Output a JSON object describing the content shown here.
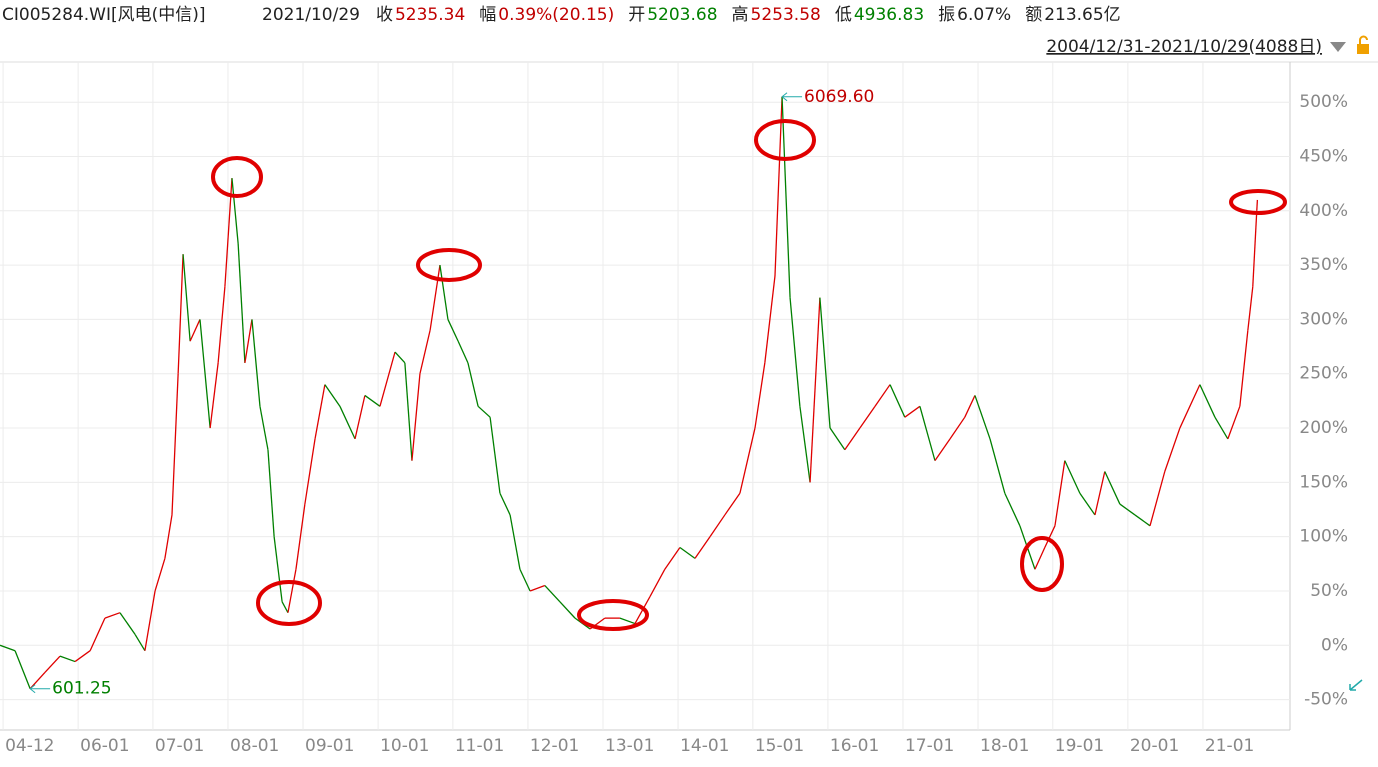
{
  "header": {
    "ticker": "CI005284.WI[风电(中信)]",
    "date": "2021/10/29",
    "fields": [
      {
        "label": "收",
        "value": "5235.34",
        "color": "#c00000"
      },
      {
        "label": "幅",
        "value": "0.39%(20.15)",
        "color": "#c00000"
      },
      {
        "label": "开",
        "value": "5203.68",
        "color": "#008000"
      },
      {
        "label": "高",
        "value": "5253.58",
        "color": "#c00000"
      },
      {
        "label": "低",
        "value": "4936.83",
        "color": "#008000"
      },
      {
        "label": "振",
        "value": "6.07%",
        "color": "#222222"
      },
      {
        "label": "额",
        "value": "213.65亿",
        "color": "#222222"
      }
    ],
    "range": "2004/12/31-2021/10/29(4088日)"
  },
  "chart_data": {
    "type": "line",
    "up_color": "#e00000",
    "down_color": "#008000",
    "grid": true,
    "xlim": [
      0,
      4193
    ],
    "ylim": [
      -78,
      537
    ],
    "xticks": [
      {
        "value": 10,
        "label": "04-12"
      },
      {
        "value": 254,
        "label": "06-01"
      },
      {
        "value": 497,
        "label": "07-01"
      },
      {
        "value": 741,
        "label": "08-01"
      },
      {
        "value": 985,
        "label": "09-01"
      },
      {
        "value": 1229,
        "label": "10-01"
      },
      {
        "value": 1472,
        "label": "11-01"
      },
      {
        "value": 1716,
        "label": "12-01"
      },
      {
        "value": 1960,
        "label": "13-01"
      },
      {
        "value": 2204,
        "label": "14-01"
      },
      {
        "value": 2447,
        "label": "15-01"
      },
      {
        "value": 2691,
        "label": "16-01"
      },
      {
        "value": 2935,
        "label": "17-01"
      },
      {
        "value": 3179,
        "label": "18-01"
      },
      {
        "value": 3422,
        "label": "19-01"
      },
      {
        "value": 3666,
        "label": "20-01"
      },
      {
        "value": 3910,
        "label": "21-01"
      }
    ],
    "yticks": [
      {
        "value": -50,
        "label": "-50%"
      },
      {
        "value": 0,
        "label": "0%"
      },
      {
        "value": 50,
        "label": "50%"
      },
      {
        "value": 100,
        "label": "100%"
      },
      {
        "value": 150,
        "label": "150%"
      },
      {
        "value": 200,
        "label": "200%"
      },
      {
        "value": 250,
        "label": "250%"
      },
      {
        "value": 300,
        "label": "300%"
      },
      {
        "value": 350,
        "label": "350%"
      },
      {
        "value": 400,
        "label": "400%"
      },
      {
        "value": 450,
        "label": "450%"
      },
      {
        "value": 500,
        "label": "500%"
      }
    ],
    "x": [
      0,
      49,
      98,
      146,
      195,
      244,
      293,
      341,
      390,
      439,
      471,
      504,
      536,
      559,
      579,
      595,
      618,
      650,
      683,
      709,
      731,
      754,
      774,
      796,
      819,
      845,
      871,
      891,
      917,
      936,
      962,
      991,
      1024,
      1056,
      1105,
      1154,
      1186,
      1235,
      1284,
      1316,
      1339,
      1365,
      1398,
      1430,
      1456,
      1489,
      1521,
      1554,
      1593,
      1625,
      1658,
      1690,
      1723,
      1771,
      1820,
      1869,
      1918,
      1966,
      2015,
      2064,
      2113,
      2161,
      2210,
      2259,
      2308,
      2356,
      2405,
      2454,
      2486,
      2519,
      2542,
      2568,
      2600,
      2633,
      2665,
      2698,
      2746,
      2795,
      2844,
      2893,
      2941,
      2990,
      3039,
      3088,
      3136,
      3169,
      3218,
      3266,
      3315,
      3364,
      3396,
      3429,
      3461,
      3510,
      3559,
      3591,
      3640,
      3689,
      3738,
      3786,
      3835,
      3900,
      3949,
      3991,
      4030,
      4056,
      4072,
      4085,
      4087
    ],
    "values": [
      0,
      -5,
      -40,
      -25,
      -10,
      -15,
      -5,
      25,
      30,
      10,
      -5,
      50,
      80,
      120,
      250,
      360,
      280,
      300,
      200,
      260,
      330,
      430,
      370,
      260,
      300,
      220,
      180,
      100,
      40,
      30,
      70,
      130,
      190,
      240,
      220,
      190,
      230,
      220,
      270,
      260,
      170,
      250,
      290,
      350,
      300,
      280,
      260,
      220,
      210,
      140,
      120,
      70,
      50,
      55,
      40,
      25,
      15,
      25,
      25,
      20,
      45,
      70,
      90,
      80,
      100,
      120,
      140,
      200,
      260,
      340,
      505,
      320,
      220,
      150,
      320,
      200,
      180,
      200,
      220,
      240,
      210,
      220,
      170,
      190,
      210,
      230,
      190,
      140,
      110,
      70,
      90,
      110,
      170,
      140,
      120,
      160,
      130,
      120,
      110,
      160,
      200,
      240,
      210,
      190,
      220,
      290,
      330,
      400,
      410
    ],
    "annotations": [
      {
        "text": "6069.60",
        "color": "#c00000",
        "point": 70
      },
      {
        "text": "601.25",
        "color": "#008000",
        "point": 2
      }
    ]
  }
}
